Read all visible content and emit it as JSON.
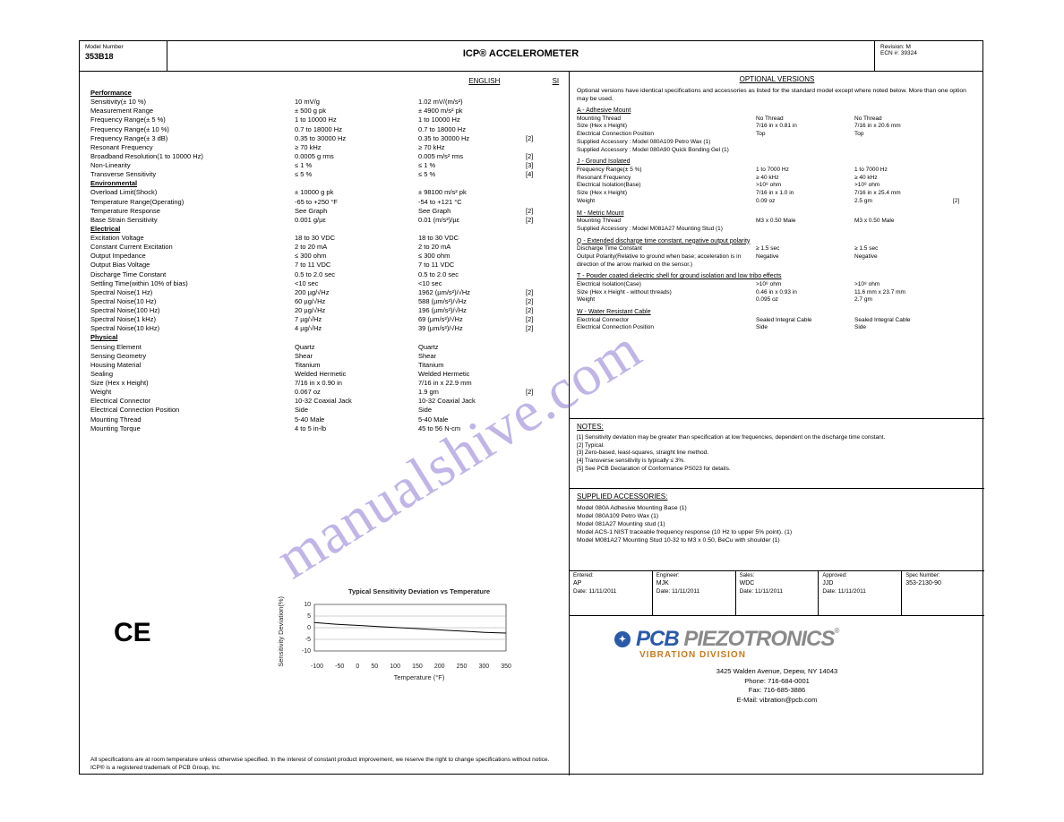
{
  "topbar": {
    "modelnum_label": "Model Number",
    "modelnum": "353B18",
    "title": "ICP® ACCELEROMETER",
    "rev_label": "Revision: M",
    "ecn_label": "ECN #: 39324"
  },
  "spec_header": {
    "english": "ENGLISH",
    "si": "SI"
  },
  "sections": [
    {
      "title": "Performance",
      "rows": [
        {
          "lbl": "Sensitivity(± 10 %)",
          "v1": "10 mV/g",
          "v2": "1.02 mV/(m/s²)",
          "note": ""
        },
        {
          "lbl": "Measurement Range",
          "v1": "± 500 g pk",
          "v2": "± 4900 m/s² pk",
          "note": ""
        },
        {
          "lbl": "Frequency Range(± 5 %)",
          "v1": "1 to 10000 Hz",
          "v2": "1 to 10000 Hz",
          "note": ""
        },
        {
          "lbl": "Frequency Range(± 10 %)",
          "v1": "0.7 to 18000 Hz",
          "v2": "0.7 to 18000 Hz",
          "note": ""
        },
        {
          "lbl": "Frequency Range(± 3 dB)",
          "v1": "0.35 to 30000 Hz",
          "v2": "0.35 to 30000 Hz",
          "note": "[2]"
        },
        {
          "lbl": "Resonant Frequency",
          "v1": "≥ 70 kHz",
          "v2": "≥ 70 kHz",
          "note": ""
        },
        {
          "lbl": "Broadband Resolution(1 to 10000 Hz)",
          "v1": "0.0005 g rms",
          "v2": "0.005 m/s² rms",
          "note": "[2]"
        },
        {
          "lbl": "Non-Linearity",
          "v1": "≤ 1 %",
          "v2": "≤ 1 %",
          "note": "[3]"
        },
        {
          "lbl": "Transverse Sensitivity",
          "v1": "≤ 5 %",
          "v2": "≤ 5 %",
          "note": "[4]"
        }
      ]
    },
    {
      "title": "Environmental",
      "rows": [
        {
          "lbl": "Overload Limit(Shock)",
          "v1": "± 10000 g pk",
          "v2": "± 98100 m/s² pk",
          "note": ""
        },
        {
          "lbl": "Temperature Range(Operating)",
          "v1": "-65 to +250 °F",
          "v2": "-54 to +121 °C",
          "note": ""
        },
        {
          "lbl": "Temperature Response",
          "v1": "See Graph",
          "v2": "See Graph",
          "note": "[2]"
        },
        {
          "lbl": "Base Strain Sensitivity",
          "v1": "0.001 g/µε",
          "v2": "0.01 (m/s²)/µε",
          "note": "[2]"
        }
      ]
    },
    {
      "title": "Electrical",
      "rows": [
        {
          "lbl": "Excitation Voltage",
          "v1": "18 to 30 VDC",
          "v2": "18 to 30 VDC",
          "note": ""
        },
        {
          "lbl": "Constant Current Excitation",
          "v1": "2 to 20 mA",
          "v2": "2 to 20 mA",
          "note": ""
        },
        {
          "lbl": "Output Impedance",
          "v1": "≤ 300 ohm",
          "v2": "≤ 300 ohm",
          "note": ""
        },
        {
          "lbl": "Output Bias Voltage",
          "v1": "7 to 11 VDC",
          "v2": "7 to 11 VDC",
          "note": ""
        },
        {
          "lbl": "Discharge Time Constant",
          "v1": "0.5 to 2.0 sec",
          "v2": "0.5 to 2.0 sec",
          "note": ""
        },
        {
          "lbl": "Settling Time(within 10% of bias)",
          "v1": "<10 sec",
          "v2": "<10 sec",
          "note": ""
        },
        {
          "lbl": "Spectral Noise(1 Hz)",
          "v1": "200 µg/√Hz",
          "v2": "1962 (µm/s²)/√Hz",
          "note": "[2]"
        },
        {
          "lbl": "Spectral Noise(10 Hz)",
          "v1": "60 µg/√Hz",
          "v2": "588 (µm/s²)/√Hz",
          "note": "[2]"
        },
        {
          "lbl": "Spectral Noise(100 Hz)",
          "v1": "20 µg/√Hz",
          "v2": "196 (µm/s²)/√Hz",
          "note": "[2]"
        },
        {
          "lbl": "Spectral Noise(1 kHz)",
          "v1": "7 µg/√Hz",
          "v2": "69 (µm/s²)/√Hz",
          "note": "[2]"
        },
        {
          "lbl": "Spectral Noise(10 kHz)",
          "v1": "4 µg/√Hz",
          "v2": "39 (µm/s²)/√Hz",
          "note": "[2]"
        }
      ]
    },
    {
      "title": "Physical",
      "rows": [
        {
          "lbl": "Sensing Element",
          "v1": "Quartz",
          "v2": "Quartz",
          "note": ""
        },
        {
          "lbl": "Sensing Geometry",
          "v1": "Shear",
          "v2": "Shear",
          "note": ""
        },
        {
          "lbl": "Housing Material",
          "v1": "Titanium",
          "v2": "Titanium",
          "note": ""
        },
        {
          "lbl": "Sealing",
          "v1": "Welded Hermetic",
          "v2": "Welded Hermetic",
          "note": ""
        },
        {
          "lbl": "Size (Hex x Height)",
          "v1": "7/16 in x 0.90 in",
          "v2": "7/16 in x 22.9 mm",
          "note": ""
        },
        {
          "lbl": "Weight",
          "v1": "0.067 oz",
          "v2": "1.9 gm",
          "note": "[2]"
        },
        {
          "lbl": "Electrical Connector",
          "v1": "10-32 Coaxial Jack",
          "v2": "10-32 Coaxial Jack",
          "note": ""
        },
        {
          "lbl": "Electrical Connection Position",
          "v1": "Side",
          "v2": "Side",
          "note": ""
        },
        {
          "lbl": "Mounting Thread",
          "v1": "5-40 Male",
          "v2": "5-40 Male",
          "note": ""
        },
        {
          "lbl": "Mounting Torque",
          "v1": "4 to 5 in-lb",
          "v2": "45 to 56 N-cm",
          "note": ""
        }
      ]
    }
  ],
  "chart": {
    "title": "Typical Sensitivity Deviation vs Temperature",
    "ylabel": "Sensitivity Deviation(%)",
    "xlabel": "Temperature (°F)",
    "x_ticks": [
      "-100",
      "-50",
      "0",
      "50",
      "100",
      "150",
      "200",
      "250",
      "300",
      "350"
    ],
    "y_ticks": [
      "10",
      "5",
      "0",
      "-5",
      "-10"
    ],
    "xlim": [
      -100,
      350
    ],
    "ylim": [
      -10,
      10
    ],
    "points": [
      [
        -100,
        2.2
      ],
      [
        -50,
        1.5
      ],
      [
        0,
        1.0
      ],
      [
        50,
        0.5
      ],
      [
        100,
        0
      ],
      [
        150,
        -0.5
      ],
      [
        200,
        -1.0
      ],
      [
        250,
        -1.5
      ],
      [
        300,
        -2.0
      ],
      [
        350,
        -2.3
      ]
    ],
    "line_color": "#000000",
    "grid_color": "#888888",
    "bg": "#ffffff",
    "font_size": 7
  },
  "ce": "CE",
  "right": {
    "optional": {
      "title": "OPTIONAL VERSIONS",
      "intro": "Optional versions have identical specifications and accessories as listed for the standard model except where noted below. More than one option may be used.",
      "groups": [
        {
          "hdr": "A - Adhesive Mount",
          "rows": [
            {
              "lbl": "Mounting Thread",
              "v1": "No Thread",
              "v2": "No Thread",
              "note": ""
            },
            {
              "lbl": "Size (Hex x Height)",
              "v1": "7/16 in x 0.81 in",
              "v2": "7/16 in x 20.6 mm",
              "note": ""
            },
            {
              "lbl": "Electrical Connection Position",
              "v1": "Top",
              "v2": "Top",
              "note": ""
            },
            {
              "lbl": "Supplied Accessory : Model 080A109 Petro Wax (1)",
              "v1": "",
              "v2": "",
              "note": ""
            },
            {
              "lbl": "Supplied Accessory : Model 080A90 Quick Bonding Gel (1)",
              "v1": "",
              "v2": "",
              "note": ""
            }
          ]
        },
        {
          "hdr": "J - Ground Isolated",
          "rows": [
            {
              "lbl": "Frequency Range(± 5 %)",
              "v1": "1 to 7000 Hz",
              "v2": "1 to 7000 Hz",
              "note": ""
            },
            {
              "lbl": "Resonant Frequency",
              "v1": "≥ 40 kHz",
              "v2": "≥ 40 kHz",
              "note": ""
            },
            {
              "lbl": "Electrical Isolation(Base)",
              "v1": ">10⁸ ohm",
              "v2": ">10⁸ ohm",
              "note": ""
            },
            {
              "lbl": "Size (Hex x Height)",
              "v1": "7/16 in x 1.0 in",
              "v2": "7/16 in x 25.4 mm",
              "note": ""
            },
            {
              "lbl": "Weight",
              "v1": "0.09 oz",
              "v2": "2.5 gm",
              "note": "[2]"
            }
          ]
        },
        {
          "hdr": "M - Metric Mount",
          "rows": [
            {
              "lbl": "Mounting Thread",
              "v1": "M3 x 0.50 Male",
              "v2": "M3 x 0.50 Male",
              "note": ""
            },
            {
              "lbl": "Supplied Accessory : Model M081A27 Mounting Stud (1)",
              "v1": "",
              "v2": "",
              "note": ""
            }
          ]
        },
        {
          "hdr": "Q - Extended discharge time constant, negative output polarity",
          "rows": [
            {
              "lbl": "Discharge Time Constant",
              "v1": "≥ 1.5 sec",
              "v2": "≥ 1.5 sec",
              "note": ""
            },
            {
              "lbl": "Output Polarity(Relative to ground when base; acceleration is in direction of the arrow marked on the sensor.)",
              "v1": "Negative",
              "v2": "Negative",
              "note": ""
            }
          ]
        },
        {
          "hdr": "T - Powder coated dielectric shell for ground isolation and low tribo effects",
          "rows": [
            {
              "lbl": "Electrical Isolation(Case)",
              "v1": ">10⁸ ohm",
              "v2": ">10⁸ ohm",
              "note": ""
            },
            {
              "lbl": "Size (Hex x Height - without threads)",
              "v1": "0.46 in x 0.93 in",
              "v2": "11.6 mm x 23.7 mm",
              "note": ""
            },
            {
              "lbl": "Weight",
              "v1": "0.095 oz",
              "v2": "2.7 gm",
              "note": ""
            }
          ]
        },
        {
          "hdr": "W - Water Resistant Cable",
          "rows": [
            {
              "lbl": "Electrical Connector",
              "v1": "Sealed Integral Cable",
              "v2": "Sealed Integral Cable",
              "note": ""
            },
            {
              "lbl": "Electrical Connection Position",
              "v1": "Side",
              "v2": "Side",
              "note": ""
            }
          ]
        }
      ]
    },
    "notes": {
      "title": "NOTES:",
      "items": [
        "[1] Sensitivity deviation may be greater than specification at low frequencies, dependent on the discharge time constant.",
        "[2] Typical.",
        "[3] Zero-based, least-squares, straight line method.",
        "[4] Transverse sensitivity is typically ≤ 3%.",
        "[5] See PCB Declaration of Conformance PS023 for details."
      ]
    },
    "accessories": {
      "title": "SUPPLIED ACCESSORIES:",
      "items": [
        "Model 080A Adhesive Mounting Base (1)",
        "Model 080A109 Petro Wax (1)",
        "Model 081A27 Mounting stud (1)",
        "Model ACS-1 NIST traceable frequency response (10 Hz to upper 5% point). (1)",
        "Model M081A27 Mounting Stud 10-32 to M3 x 0.50, BeCu with shoulder (1)"
      ]
    },
    "sig": {
      "entered": {
        "lbl": "Entered:",
        "v": "AP",
        "d": "Date: 11/11/2011"
      },
      "engineer": {
        "lbl": "Engineer:",
        "v": "MJK",
        "d": "Date: 11/11/2011"
      },
      "sales": {
        "lbl": "Sales:",
        "v": "WDC",
        "d": "Date: 11/11/2011"
      },
      "approved": {
        "lbl": "Approved:",
        "v": "JJD",
        "d": "Date: 11/11/2011"
      },
      "spec": {
        "lbl": "Spec Number:",
        "v": "353-2130-90",
        "d": ""
      }
    },
    "footer": {
      "brand1": "PCB",
      "brand2": " PIEZOTRONICS",
      "tm": "®",
      "division": "VIBRATION DIVISION",
      "addr1": "3425 Walden Avenue, Depew, NY 14043",
      "addr2": "Phone: 716-684-0001",
      "addr3": "Fax: 716-685-3886",
      "addr4": "E-Mail: vibration@pcb.com"
    },
    "disclaimer": "All specifications are at room temperature unless otherwise specified. In the interest of constant product improvement, we reserve the right to change specifications without notice. ICP® is a registered trademark of PCB Group, Inc."
  },
  "watermark": "manualshive.com"
}
